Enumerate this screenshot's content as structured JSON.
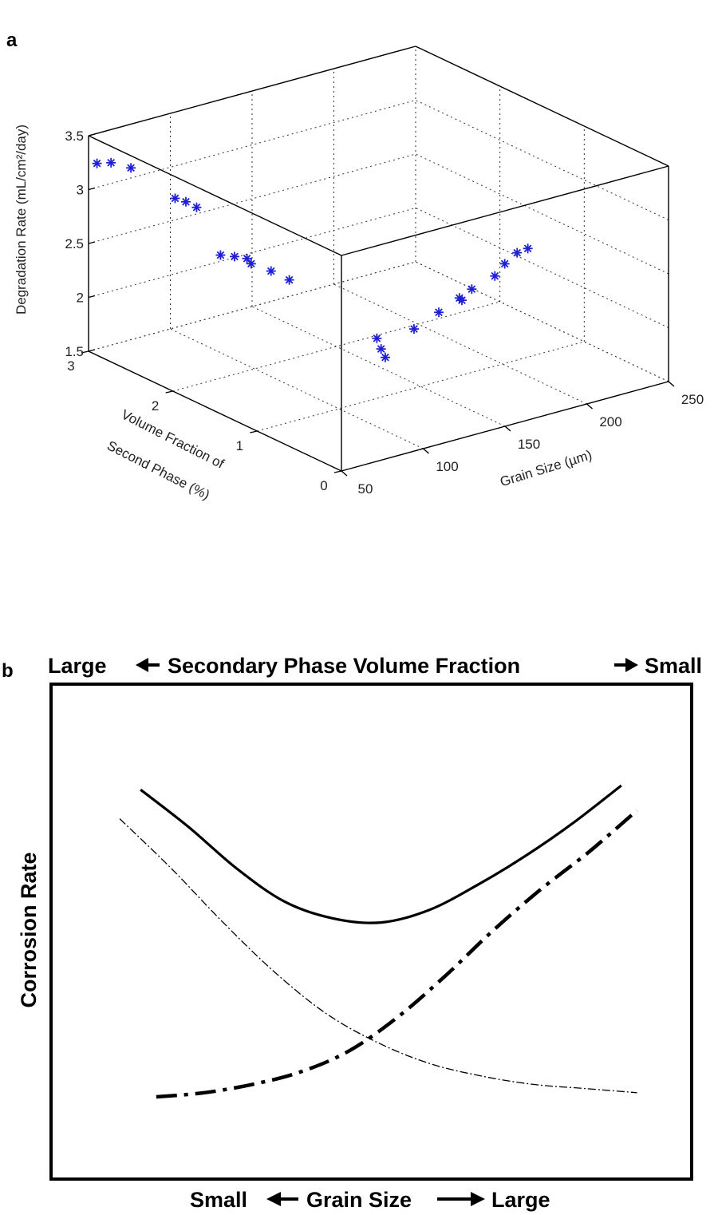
{
  "chart_data": [
    {
      "panel_label": "a",
      "type": "scatter3d",
      "xlabel": "Grain Size (µm)",
      "ylabel": "Volume Fraction of Second Phase (%)",
      "ylabel_lines": [
        "Volume Fraction of",
        "Second Phase (%)"
      ],
      "zlabel": "Degradation Rate (mL/cm²/day)",
      "xlim": [
        50,
        250
      ],
      "ylim": [
        0,
        3
      ],
      "zlim": [
        1.5,
        3.5
      ],
      "x_ticks": [
        "50",
        "100",
        "150",
        "200",
        "250"
      ],
      "y_ticks": [
        "0",
        "1",
        "2",
        "3"
      ],
      "z_ticks": [
        "1.5",
        "2",
        "2.5",
        "3",
        "3.5"
      ],
      "grid": true,
      "marker": "asterisk",
      "marker_color": "#1f1fd6",
      "points": [
        {
          "x": 50,
          "y": 2.9,
          "z": 3.28
        },
        {
          "x": 56,
          "y": 2.85,
          "z": 3.28
        },
        {
          "x": 63,
          "y": 2.75,
          "z": 3.24
        },
        {
          "x": 72,
          "y": 2.4,
          "z": 3.05
        },
        {
          "x": 76,
          "y": 2.35,
          "z": 3.02
        },
        {
          "x": 80,
          "y": 2.3,
          "z": 2.97
        },
        {
          "x": 74,
          "y": 1.9,
          "z": 2.7
        },
        {
          "x": 80,
          "y": 1.85,
          "z": 2.68
        },
        {
          "x": 85,
          "y": 1.8,
          "z": 2.66
        },
        {
          "x": 85,
          "y": 1.75,
          "z": 2.63
        },
        {
          "x": 92,
          "y": 1.65,
          "z": 2.57
        },
        {
          "x": 98,
          "y": 1.55,
          "z": 2.5
        },
        {
          "x": 100,
          "y": 0.55,
          "z": 2.32
        },
        {
          "x": 100,
          "y": 0.5,
          "z": 2.24
        },
        {
          "x": 100,
          "y": 0.45,
          "z": 2.18
        },
        {
          "x": 115,
          "y": 0.4,
          "z": 2.4
        },
        {
          "x": 125,
          "y": 0.3,
          "z": 2.55
        },
        {
          "x": 135,
          "y": 0.25,
          "z": 2.66
        },
        {
          "x": 135,
          "y": 0.22,
          "z": 2.65
        },
        {
          "x": 140,
          "y": 0.2,
          "z": 2.74
        },
        {
          "x": 150,
          "y": 0.12,
          "z": 2.85
        },
        {
          "x": 155,
          "y": 0.1,
          "z": 2.95
        },
        {
          "x": 160,
          "y": 0.05,
          "z": 3.05
        },
        {
          "x": 165,
          "y": 0.02,
          "z": 3.08
        }
      ]
    },
    {
      "panel_label": "b",
      "type": "line",
      "top_label": {
        "left": "Large",
        "center": "Secondary Phase Volume Fraction",
        "right": "Small"
      },
      "bottom_label": {
        "left": "Small",
        "center": "Grain Size",
        "right": "Large"
      },
      "ylabel": "Corrosion Rate",
      "x": [
        0,
        0.1,
        0.2,
        0.3,
        0.4,
        0.5,
        0.6,
        0.7,
        0.8,
        0.9,
        1.0
      ],
      "series": [
        {
          "style": "solid",
          "values": [
            0.79,
            0.7,
            0.6,
            0.52,
            0.48,
            0.47,
            0.5,
            0.56,
            0.63,
            0.71,
            0.8
          ]
        },
        {
          "style": "dash-dot",
          "values": [
            0.05,
            0.06,
            0.08,
            0.11,
            0.16,
            0.24,
            0.34,
            0.45,
            0.55,
            0.64,
            0.74
          ]
        },
        {
          "style": "dash-dot-thin",
          "values": [
            0.72,
            0.6,
            0.47,
            0.35,
            0.25,
            0.18,
            0.13,
            0.1,
            0.08,
            0.07,
            0.06
          ]
        }
      ]
    }
  ]
}
